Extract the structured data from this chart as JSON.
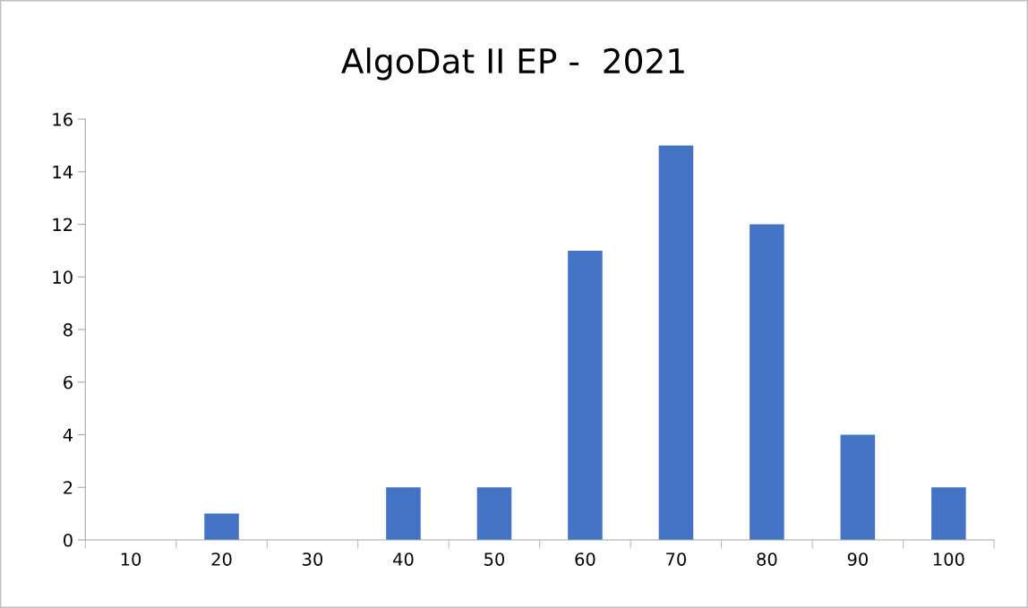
{
  "chart_data": {
    "type": "bar",
    "title": "AlgoDat II EP -  2021",
    "categories": [
      "10",
      "20",
      "30",
      "40",
      "50",
      "60",
      "70",
      "80",
      "90",
      "100"
    ],
    "values": [
      0,
      1,
      0,
      2,
      2,
      11,
      15,
      12,
      4,
      2
    ],
    "color": "#4472c4",
    "ylim": [
      0,
      16
    ],
    "yticks": [
      0,
      2,
      4,
      6,
      8,
      10,
      12,
      14,
      16
    ],
    "grid": false
  }
}
